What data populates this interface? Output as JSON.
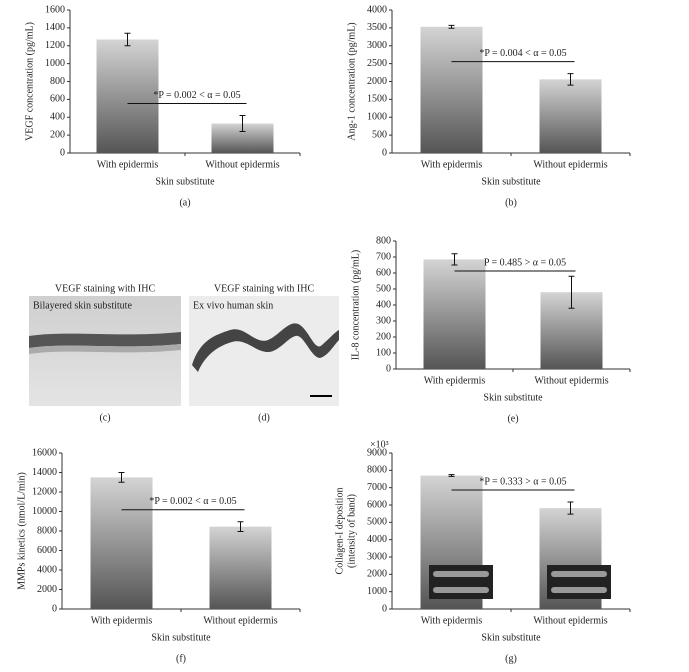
{
  "chart_data": [
    {
      "type": "bar",
      "panel_label": "(a)",
      "xlabel": "Skin substitute",
      "ylabel": [
        "VEGF concentration (pg/mL)"
      ],
      "categories": [
        "With epidermis",
        "Without epidermis"
      ],
      "values": [
        1270,
        330
      ],
      "errors": [
        70,
        90
      ],
      "ylim": [
        0,
        1600
      ],
      "yticks": [
        0,
        200,
        400,
        600,
        800,
        1000,
        1200,
        1400,
        1600
      ],
      "annotation": "*P = 0.002 < α = 0.05"
    },
    {
      "type": "bar",
      "panel_label": "(b)",
      "xlabel": "Skin substitute",
      "ylabel": [
        "Ang-1 concentration (pg/mL)"
      ],
      "categories": [
        "With epidermis",
        "Without epidermis"
      ],
      "values": [
        3530,
        2060
      ],
      "errors": [
        40,
        160
      ],
      "ylim": [
        0,
        4000
      ],
      "yticks": [
        0,
        500,
        1000,
        1500,
        2000,
        2500,
        3000,
        3500,
        4000
      ],
      "annotation": "*P = 0.004 < α = 0.05"
    },
    {
      "type": "bar",
      "panel_label": "(e)",
      "xlabel": "Skin substitute",
      "ylabel": [
        "IL-8 concentration (pg/mL)"
      ],
      "categories": [
        "With epidermis",
        "Without epidermis"
      ],
      "values": [
        685,
        480
      ],
      "errors": [
        35,
        100
      ],
      "ylim": [
        0,
        800
      ],
      "yticks": [
        0,
        100,
        200,
        300,
        400,
        500,
        600,
        700,
        800
      ],
      "annotation": "P = 0.485 > α = 0.05"
    },
    {
      "type": "bar",
      "panel_label": "(f)",
      "xlabel": "Skin substitute",
      "ylabel": [
        "MMPs kinetics (nmol/L/min)"
      ],
      "categories": [
        "With epidermis",
        "Without epidermis"
      ],
      "values": [
        13500,
        8450
      ],
      "errors": [
        500,
        500
      ],
      "ylim": [
        0,
        16000
      ],
      "yticks": [
        0,
        2000,
        4000,
        6000,
        8000,
        10000,
        12000,
        14000,
        16000
      ],
      "annotation": "*P = 0.002 < α = 0.05"
    },
    {
      "type": "bar",
      "panel_label": "(g)",
      "xlabel": "Skin substitute",
      "ylabel": [
        "Collagen-I deposition",
        "(intensity of band)"
      ],
      "yscale_label": "×10³",
      "categories": [
        "With epidermis",
        "Without epidermis"
      ],
      "values": [
        7700,
        5820
      ],
      "errors": [
        50,
        350
      ],
      "ylim": [
        0,
        9000
      ],
      "yticks": [
        0,
        1000,
        2000,
        3000,
        4000,
        5000,
        6000,
        7000,
        8000,
        9000
      ],
      "annotation": "*P = 0.333 > α = 0.05"
    }
  ],
  "images": [
    {
      "title": "VEGF staining with IHC",
      "inset": "Bilayered skin substitute",
      "panel_label": "(c)"
    },
    {
      "title": "VEGF staining with IHC",
      "inset": "Ex vivo human skin",
      "panel_label": "(d)"
    }
  ]
}
